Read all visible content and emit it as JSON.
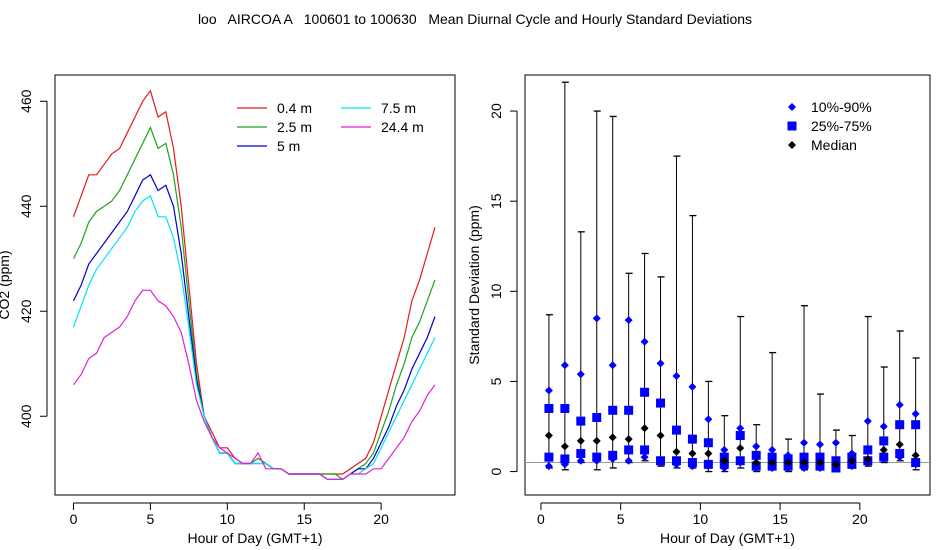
{
  "page": {
    "title": "loo   AIRCOA A   100601 to 100630   Mean Diurnal Cycle and Hourly Standard Deviations"
  },
  "chart_data": [
    {
      "type": "line",
      "xlabel": "Hour of Day (GMT+1)",
      "ylabel": "CO2 (ppm)",
      "xlim": [
        -1.2,
        24.8
      ],
      "ylim": [
        385,
        465
      ],
      "xticks": [
        0,
        5,
        10,
        15,
        20
      ],
      "yticks": [
        400,
        420,
        440,
        460
      ],
      "grid": false,
      "legend_position": "top-right",
      "x": [
        0,
        0.5,
        1,
        1.5,
        2,
        2.5,
        3,
        3.5,
        4,
        4.5,
        5,
        5.5,
        6,
        6.5,
        7,
        7.5,
        8,
        8.5,
        9,
        9.5,
        10,
        10.5,
        11,
        11.5,
        12,
        12.5,
        13,
        13.5,
        14,
        14.5,
        15,
        15.5,
        16,
        16.5,
        17,
        17.5,
        18,
        18.5,
        19,
        19.5,
        20,
        20.5,
        21,
        21.5,
        22,
        22.5,
        23,
        23.5
      ],
      "series": [
        {
          "name": "0.4 m",
          "color": "#e41a1c",
          "values": [
            438,
            442,
            446,
            446,
            448,
            450,
            451,
            454,
            457,
            460,
            462,
            457,
            458,
            451,
            440,
            425,
            410,
            400,
            397,
            394,
            394,
            392,
            391,
            391,
            392,
            391,
            390,
            390,
            389,
            389,
            389,
            389,
            389,
            389,
            389,
            389,
            390,
            391,
            392,
            395,
            400,
            405,
            410,
            415,
            422,
            426,
            431,
            436
          ]
        },
        {
          "name": "2.5 m",
          "color": "#1fa01f",
          "values": [
            430,
            433,
            437,
            439,
            440,
            441,
            443,
            446,
            449,
            452,
            455,
            451,
            452,
            446,
            436,
            422,
            408,
            400,
            396,
            393,
            393,
            391,
            391,
            391,
            392,
            391,
            390,
            390,
            389,
            389,
            389,
            389,
            389,
            389,
            389,
            388,
            389,
            390,
            391,
            393,
            397,
            401,
            406,
            410,
            415,
            418,
            422,
            426
          ]
        },
        {
          "name": "5 m",
          "color": "#0000cc",
          "values": [
            422,
            425,
            429,
            431,
            433,
            435,
            437,
            439,
            442,
            445,
            446,
            443,
            444,
            440,
            431,
            419,
            407,
            400,
            396,
            393,
            393,
            391,
            391,
            391,
            391,
            391,
            390,
            390,
            389,
            389,
            389,
            389,
            389,
            388,
            388,
            388,
            389,
            390,
            390,
            392,
            395,
            398,
            402,
            405,
            409,
            412,
            415,
            419
          ]
        },
        {
          "name": "7.5 m",
          "color": "#00e5ee",
          "values": [
            417,
            421,
            425,
            428,
            430,
            432,
            434,
            436,
            439,
            441,
            442,
            438,
            438,
            434,
            427,
            417,
            406,
            400,
            396,
            393,
            393,
            391,
            391,
            391,
            391,
            391,
            390,
            390,
            389,
            389,
            389,
            389,
            389,
            388,
            388,
            388,
            389,
            389,
            390,
            391,
            394,
            397,
            400,
            403,
            406,
            409,
            412,
            415
          ]
        },
        {
          "name": "24.4 m",
          "color": "#e21fd4",
          "values": [
            406,
            408,
            411,
            412,
            415,
            416,
            417,
            419,
            422,
            424,
            424,
            422,
            421,
            419,
            416,
            410,
            403,
            399,
            396,
            394,
            393,
            392,
            391,
            391,
            393,
            390,
            390,
            390,
            389,
            389,
            389,
            389,
            389,
            388,
            388,
            388,
            389,
            389,
            389,
            390,
            390,
            392,
            394,
            396,
            399,
            401,
            404,
            406
          ]
        }
      ]
    },
    {
      "type": "scatter",
      "xlabel": "Hour of Day (GMT+1)",
      "ylabel": "Standard Deviation (ppm)",
      "xlim": [
        -1,
        24.4
      ],
      "ylim": [
        -1.3,
        22
      ],
      "xticks": [
        0,
        5,
        10,
        15,
        20
      ],
      "yticks": [
        0,
        5,
        10,
        15,
        20
      ],
      "reference_line": 0.5,
      "grid": false,
      "legend_position": "top-right",
      "legend": [
        "10%-90%",
        "25%-75%",
        "Median"
      ],
      "colors": {
        "p10_90": "#0000ff",
        "p25_75": "#0000ff",
        "median": "#000000"
      },
      "hours": [
        0.5,
        1.5,
        2.5,
        3.5,
        4.5,
        5.5,
        6.5,
        7.5,
        8.5,
        9.5,
        10.5,
        11.5,
        12.5,
        13.5,
        14.5,
        15.5,
        16.5,
        17.5,
        18.5,
        19.5,
        20.5,
        21.5,
        22.5,
        23.5
      ],
      "whisker_max": [
        8.7,
        21.6,
        13.3,
        20.0,
        19.7,
        11.0,
        12.1,
        10.8,
        17.5,
        14.2,
        5.0,
        3.1,
        8.6,
        2.6,
        6.6,
        1.8,
        9.2,
        4.3,
        2.3,
        2.0,
        8.6,
        5.8,
        7.8,
        6.3
      ],
      "p90": [
        4.5,
        5.9,
        5.4,
        8.5,
        5.9,
        8.4,
        7.2,
        6.0,
        5.3,
        4.7,
        2.9,
        1.2,
        2.4,
        1.4,
        1.2,
        0.9,
        1.6,
        1.5,
        1.6,
        1.0,
        2.8,
        2.5,
        3.7,
        3.2
      ],
      "p75": [
        3.5,
        3.5,
        2.8,
        3.0,
        3.4,
        3.4,
        4.4,
        3.8,
        2.3,
        1.8,
        1.6,
        0.8,
        2.0,
        0.9,
        0.8,
        0.7,
        0.8,
        0.8,
        0.6,
        0.8,
        1.2,
        1.7,
        2.6,
        2.6
      ],
      "median": [
        2.0,
        1.4,
        1.7,
        1.7,
        1.9,
        1.8,
        2.4,
        2.0,
        1.1,
        1.0,
        1.0,
        0.6,
        1.3,
        0.5,
        0.5,
        0.5,
        0.5,
        0.5,
        0.4,
        0.6,
        0.7,
        1.2,
        1.5,
        0.9
      ],
      "p25": [
        0.8,
        0.7,
        1.0,
        0.8,
        0.9,
        1.2,
        1.2,
        0.6,
        0.6,
        0.5,
        0.4,
        0.4,
        0.6,
        0.3,
        0.3,
        0.3,
        0.4,
        0.3,
        0.2,
        0.4,
        0.6,
        0.8,
        1.0,
        0.5
      ],
      "p10": [
        0.3,
        0.4,
        0.6,
        0.6,
        0.7,
        0.6,
        0.8,
        0.5,
        0.4,
        0.3,
        0.3,
        0.2,
        0.5,
        0.2,
        0.2,
        0.2,
        0.2,
        0.2,
        0.2,
        0.3,
        0.5,
        0.7,
        0.8,
        0.4
      ],
      "whisker_min": [
        0.2,
        0.1,
        0.5,
        0.1,
        0.2,
        0.5,
        0.6,
        0.3,
        0.2,
        0.2,
        0.0,
        0.0,
        0.2,
        0.0,
        0.1,
        0.0,
        0.1,
        0.1,
        0.0,
        0.2,
        0.3,
        0.5,
        0.6,
        0.1
      ]
    }
  ]
}
